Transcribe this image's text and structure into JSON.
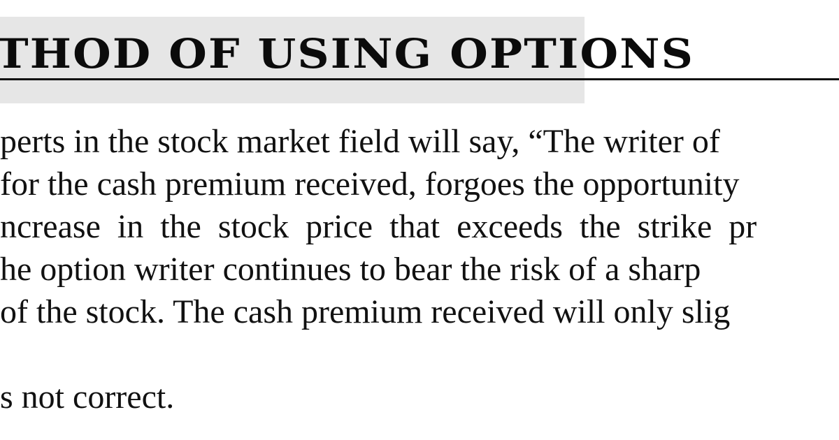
{
  "heading": {
    "text": "THOD OF USING OPTIONS"
  },
  "paragraph": {
    "lines": [
      "perts in the stock market field will say, “The writer of",
      "for the cash premium received, forgoes the opportunity",
      "ncrease in the stock price that exceeds the strike pr",
      "he option writer continues to bear the risk of a sharp",
      "of the stock. The cash premium received will only slig"
    ]
  },
  "closing_line": "s not correct."
}
